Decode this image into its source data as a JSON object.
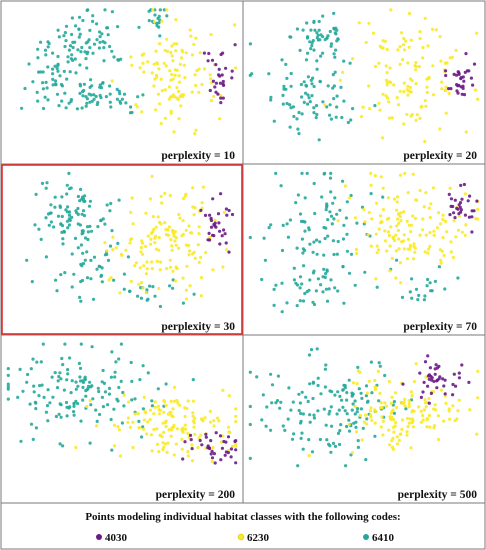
{
  "colors": {
    "purple": "#6a1b86",
    "yellow": "#f9ea26",
    "teal": "#25a89b",
    "highlight_border": "#e03030"
  },
  "chart_data": {
    "type": "scatter",
    "grid": false,
    "panels": [
      {
        "label": "perplexity = 10",
        "highlighted": false
      },
      {
        "label": "perplexity = 20",
        "highlighted": false
      },
      {
        "label": "perplexity = 30",
        "highlighted": true
      },
      {
        "label": "perplexity = 70",
        "highlighted": false
      },
      {
        "label": "perplexity = 200",
        "highlighted": false
      },
      {
        "label": "perplexity = 500",
        "highlighted": false
      }
    ],
    "legend": {
      "title": "Points modeling individual habitat classes with the following codes:",
      "placement": "bottom",
      "items": [
        {
          "code": "4030",
          "color": "#6a1b86"
        },
        {
          "code": "6230",
          "color": "#f9ea26"
        },
        {
          "code": "6410",
          "color": "#25a89b"
        }
      ]
    }
  }
}
